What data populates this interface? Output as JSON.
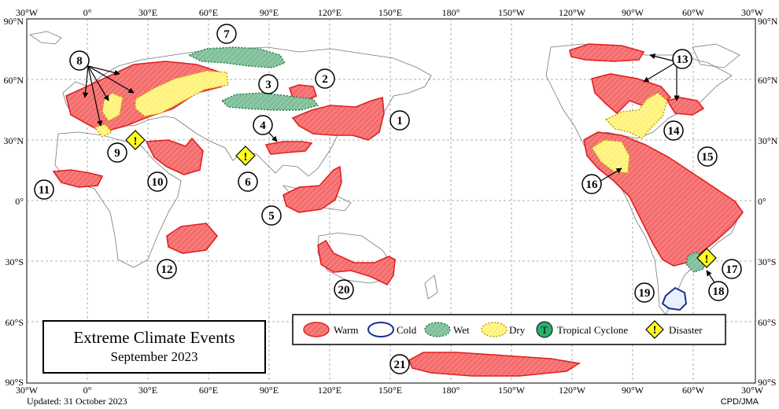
{
  "title": "Extreme Climate Events",
  "subtitle": "September  2023",
  "updated": "Updated:  31 October 2023",
  "credit": "CPD/JMA",
  "axes": {
    "lon_top": [
      "30°W",
      "0°",
      "30°E",
      "60°E",
      "90°E",
      "120°E",
      "150°E",
      "180°",
      "150°W",
      "120°W",
      "90°W",
      "60°W",
      "30°W"
    ],
    "lon_bottom": [
      "30°W",
      "0°",
      "30°E",
      "60°E",
      "90°E",
      "120°E",
      "150°E",
      "180°",
      "150°W",
      "120°W",
      "90°W",
      "60°W",
      "30°W"
    ],
    "lat_left": [
      "90°N",
      "60°N",
      "30°N",
      "0°",
      "30°S",
      "60°S",
      "90°S"
    ],
    "lat_right": [
      "90°N",
      "60°N",
      "30°N",
      "0°",
      "30°S",
      "60°S",
      "90°S"
    ]
  },
  "legend": {
    "warm": "Warm",
    "cold": "Cold",
    "wet": "Wet",
    "dry": "Dry",
    "tc": "Tropical  Cyclone",
    "tc_symbol": "T",
    "disaster": "Disaster",
    "disaster_symbol": "!"
  },
  "event_numbers": [
    "1",
    "2",
    "3",
    "4",
    "5",
    "6",
    "7",
    "8",
    "9",
    "10",
    "11",
    "12",
    "13",
    "14",
    "15",
    "16",
    "17",
    "18",
    "19",
    "20",
    "21"
  ],
  "colors": {
    "warm_fill": "#f46d6d",
    "warm_stroke": "#e0201f",
    "cold_stroke": "#1b2f8f",
    "wet_fill": "#7fbf9a",
    "dry_fill": "#fff27a",
    "disaster_fill": "#ffff22",
    "tc_fill": "#28b06c"
  }
}
